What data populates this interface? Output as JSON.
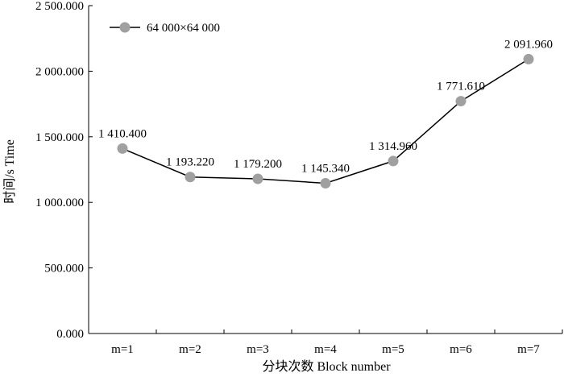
{
  "chart_data": {
    "type": "line",
    "categories": [
      "m=1",
      "m=2",
      "m=3",
      "m=4",
      "m=5",
      "m=6",
      "m=7"
    ],
    "series": [
      {
        "name": "64 000×64 000",
        "values": [
          1410.4,
          1193.22,
          1179.2,
          1145.34,
          1314.96,
          1771.61,
          2091.96
        ],
        "data_labels": [
          "1 410.400",
          "1 193.220",
          "1 179.200",
          "1 145.340",
          "1 314.960",
          "1 771.610",
          "2 091.960"
        ]
      }
    ],
    "xlabel": "分块次数  Block number",
    "ylabel": "时间/s  Time",
    "ylim": [
      0,
      2500
    ],
    "yticks": [
      0,
      500,
      1000,
      1500,
      2000,
      2500
    ],
    "ytick_labels": [
      "0.000",
      "500.000",
      "1 000.000",
      "1 500.000",
      "2 000.000",
      "2 500.000"
    ],
    "grid": false,
    "legend_position": "top-left",
    "colors": {
      "line": "#000000",
      "marker": "#a0a0a0",
      "axis": "#000000"
    }
  }
}
